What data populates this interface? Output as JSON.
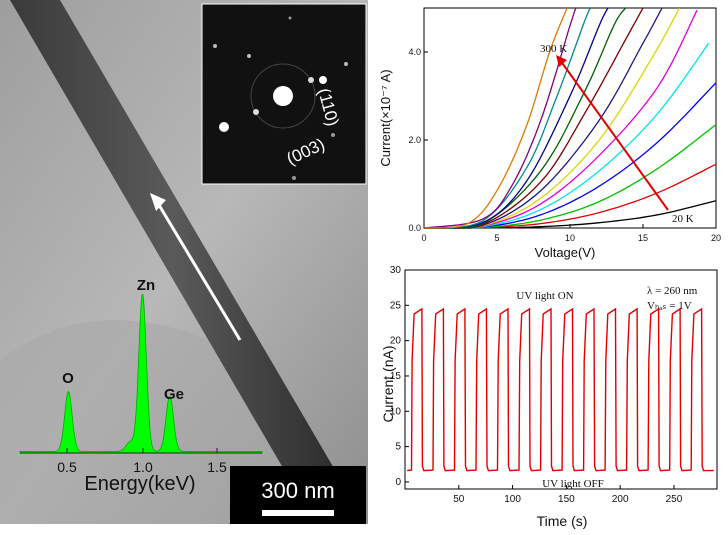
{
  "tem": {
    "scale_bar_label": "300 nm",
    "saed": {
      "labels": [
        "(110)",
        "(003)"
      ]
    },
    "edx": {
      "xlabel": "Energy(keV)",
      "ticks": [
        "0.5",
        "1.0",
        "1.5"
      ],
      "peaks": [
        {
          "label": "O",
          "energy": 0.52,
          "height": 0.38
        },
        {
          "label": "Zn",
          "energy": 1.01,
          "height": 1.0
        },
        {
          "label": "Ge",
          "energy": 1.19,
          "height": 0.35
        }
      ],
      "fill_color": "#00ff00"
    }
  },
  "chart_data": [
    {
      "type": "line",
      "xlabel": "Voltage(V)",
      "ylabel": "Current(×10⁻⁷ A)",
      "xlim": [
        0,
        20
      ],
      "ylim": [
        0,
        5
      ],
      "xticks": [
        "0",
        "5",
        "10",
        "15",
        "20"
      ],
      "yticks": [
        "0.0",
        "2.0",
        "4.0"
      ],
      "annotations": [
        "300 K",
        "20 K"
      ],
      "series": [
        {
          "color": "#000000",
          "values": [
            [
              0,
              0
            ],
            [
              4,
              0
            ],
            [
              8,
              0.03
            ],
            [
              12,
              0.12
            ],
            [
              16,
              0.3
            ],
            [
              20,
              0.62
            ]
          ]
        },
        {
          "color": "#e00000",
          "values": [
            [
              0,
              0
            ],
            [
              4,
              0.01
            ],
            [
              8,
              0.1
            ],
            [
              12,
              0.35
            ],
            [
              16,
              0.8
            ],
            [
              20,
              1.45
            ]
          ]
        },
        {
          "color": "#00c000",
          "values": [
            [
              0,
              0
            ],
            [
              4,
              0.01
            ],
            [
              8,
              0.18
            ],
            [
              12,
              0.6
            ],
            [
              16,
              1.35
            ],
            [
              20,
              2.35
            ]
          ]
        },
        {
          "color": "#0000ff",
          "values": [
            [
              0,
              0
            ],
            [
              4,
              0.02
            ],
            [
              8,
              0.3
            ],
            [
              12,
              0.95
            ],
            [
              16,
              1.95
            ],
            [
              20,
              3.3
            ]
          ]
        },
        {
          "color": "#00e5ee",
          "values": [
            [
              0,
              0
            ],
            [
              4,
              0.03
            ],
            [
              8,
              0.42
            ],
            [
              12,
              1.3
            ],
            [
              16,
              2.6
            ],
            [
              19.5,
              4.2
            ]
          ]
        },
        {
          "color": "#e000e0",
          "values": [
            [
              0,
              0
            ],
            [
              4,
              0.04
            ],
            [
              8,
              0.55
            ],
            [
              12,
              1.65
            ],
            [
              16,
              3.2
            ],
            [
              18.7,
              4.95
            ]
          ]
        },
        {
          "color": "#d8d800",
          "values": [
            [
              0,
              0
            ],
            [
              4,
              0.05
            ],
            [
              8,
              0.68
            ],
            [
              12,
              2.0
            ],
            [
              15.5,
              3.8
            ],
            [
              17.5,
              5.0
            ]
          ]
        },
        {
          "color": "#1a1a80",
          "values": [
            [
              0,
              0
            ],
            [
              4,
              0.06
            ],
            [
              8,
              0.85
            ],
            [
              12,
              2.45
            ],
            [
              15,
              4.2
            ],
            [
              16.3,
              5.0
            ]
          ]
        },
        {
          "color": "#7a0000",
          "values": [
            [
              0,
              0
            ],
            [
              4,
              0.08
            ],
            [
              8,
              1.05
            ],
            [
              11,
              2.6
            ],
            [
              14,
              4.4
            ],
            [
              15,
              5.0
            ]
          ]
        },
        {
          "color": "#006000",
          "values": [
            [
              0,
              0
            ],
            [
              4,
              0.1
            ],
            [
              8,
              1.3
            ],
            [
              11,
              3.1
            ],
            [
              13,
              4.6
            ],
            [
              13.8,
              5.0
            ]
          ]
        },
        {
          "color": "#00008b",
          "values": [
            [
              0,
              0
            ],
            [
              4,
              0.12
            ],
            [
              7,
              1.05
            ],
            [
              10,
              3.0
            ],
            [
              12,
              4.6
            ],
            [
              12.6,
              5.0
            ]
          ]
        },
        {
          "color": "#008b8b",
          "values": [
            [
              0,
              0
            ],
            [
              4,
              0.16
            ],
            [
              7,
              1.35
            ],
            [
              9,
              2.9
            ],
            [
              11,
              4.7
            ],
            [
              11.4,
              5.0
            ]
          ]
        },
        {
          "color": "#800080",
          "values": [
            [
              0,
              0
            ],
            [
              4,
              0.2
            ],
            [
              6,
              0.95
            ],
            [
              8,
              2.45
            ],
            [
              10,
              4.6
            ],
            [
              10.4,
              5.0
            ]
          ]
        },
        {
          "color": "#e07800",
          "values": [
            [
              0,
              0
            ],
            [
              3,
              0.1
            ],
            [
              5,
              0.85
            ],
            [
              7,
              2.3
            ],
            [
              8.6,
              4.0
            ],
            [
              9.8,
              5.0
            ]
          ]
        }
      ]
    },
    {
      "type": "line",
      "xlabel": "Time (s)",
      "ylabel": "Current (nA)",
      "xlim": [
        0,
        290
      ],
      "ylim": [
        -1,
        30
      ],
      "xticks": [
        "50",
        "100",
        "150",
        "200",
        "250"
      ],
      "yticks": [
        "0",
        "5",
        "10",
        "15",
        "20",
        "25",
        "30"
      ],
      "annotations": [
        "UV light ON",
        "UV light OFF",
        "λ = 260 nm",
        "Vₕₐₛ = 1V"
      ],
      "series": [
        {
          "color": "#e00000",
          "on_level": 24.5,
          "off_level": 1.6,
          "period": 20,
          "on_duration": 10,
          "first_on": 6,
          "cycles": 14,
          "t_end": 290
        }
      ]
    }
  ]
}
